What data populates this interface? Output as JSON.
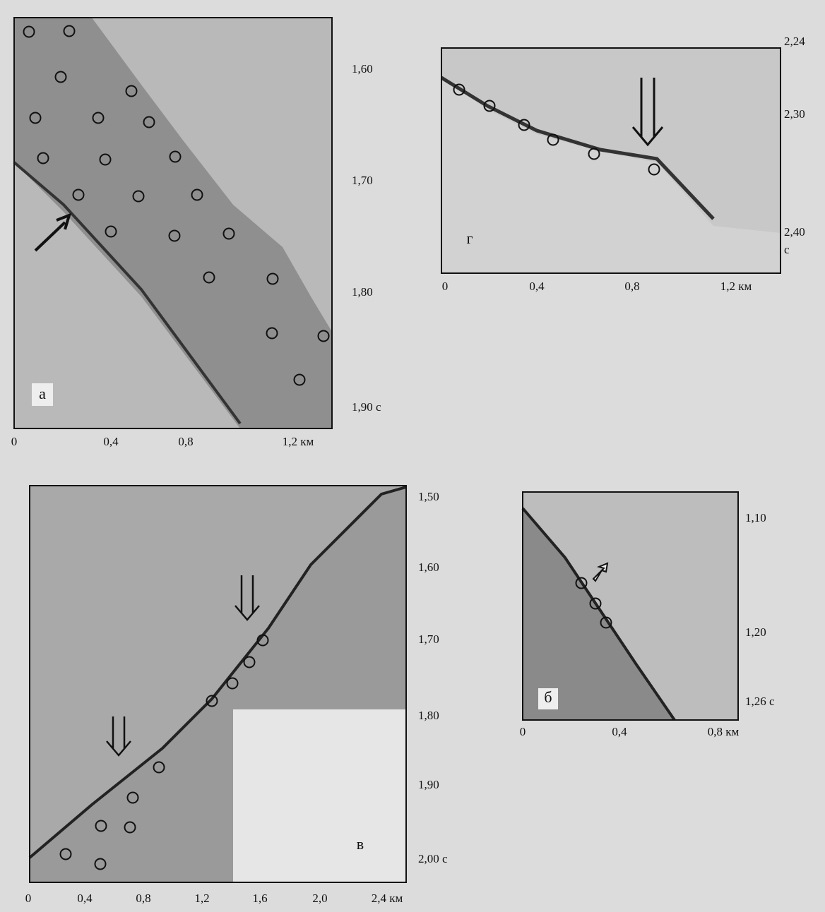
{
  "panels": [
    {
      "label": "а",
      "x_tick_labels": [
        "0",
        "0,4",
        "0,8",
        "1,2 км"
      ],
      "y_tick_labels": [
        "1,60",
        "1,70",
        "1,80",
        "1,90 с"
      ]
    },
    {
      "label": "г",
      "x_tick_labels": [
        "0",
        "0,4",
        "0,8",
        "1,2 км"
      ],
      "y_tick_labels": [
        "2,24",
        "2,30",
        "2,40",
        "с"
      ]
    },
    {
      "label": "в",
      "x_tick_labels": [
        "0",
        "0,4",
        "0,8",
        "1,2",
        "1,6",
        "2,0",
        "2,4 км"
      ],
      "y_tick_labels": [
        "1,50",
        "1,60",
        "1,70",
        "1,80",
        "1,90",
        "2,00 с"
      ]
    },
    {
      "label": "б",
      "x_tick_labels": [
        "0",
        "0,4",
        "0,8 км"
      ],
      "y_tick_labels": [
        "1,10",
        "1,20",
        "1,26 с"
      ]
    }
  ]
}
